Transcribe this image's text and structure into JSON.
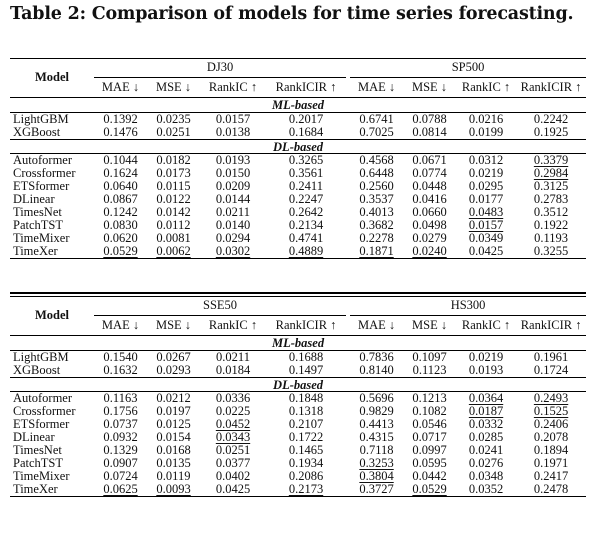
{
  "title": "Table 2: Comparison of models for time series forecasting.",
  "model_header": "Model",
  "metrics": [
    "MAE ↓",
    "MSE ↓",
    "RankIC ↑",
    "RankICIR ↑"
  ],
  "sections": [
    "ML-based",
    "DL-based"
  ],
  "tables": [
    {
      "groups": [
        "DJ30",
        "SP500"
      ],
      "ml_rows": [
        {
          "model": "LightGBM",
          "v": [
            "0.1392",
            "0.0235",
            "0.0157",
            "0.2017",
            "0.6741",
            "0.0788",
            "0.0216",
            "0.2242"
          ],
          "u": []
        },
        {
          "model": "XGBoost",
          "v": [
            "0.1476",
            "0.0251",
            "0.0138",
            "0.1684",
            "0.7025",
            "0.0814",
            "0.0199",
            "0.1925"
          ],
          "u": []
        }
      ],
      "dl_rows": [
        {
          "model": "Autoformer",
          "v": [
            "0.1044",
            "0.0182",
            "0.0193",
            "0.3265",
            "0.4568",
            "0.0671",
            "0.0312",
            "0.3379"
          ],
          "u": [
            7
          ]
        },
        {
          "model": "Crossformer",
          "v": [
            "0.1624",
            "0.0173",
            "0.0150",
            "0.3561",
            "0.6448",
            "0.0774",
            "0.0219",
            "0.2984"
          ],
          "u": [
            7
          ]
        },
        {
          "model": "ETSformer",
          "v": [
            "0.0640",
            "0.0115",
            "0.0209",
            "0.2411",
            "0.2560",
            "0.0448",
            "0.0295",
            "0.3125"
          ],
          "u": []
        },
        {
          "model": "DLinear",
          "v": [
            "0.0867",
            "0.0122",
            "0.0144",
            "0.2247",
            "0.3537",
            "0.0416",
            "0.0177",
            "0.2783"
          ],
          "u": []
        },
        {
          "model": "TimesNet",
          "v": [
            "0.1242",
            "0.0142",
            "0.0211",
            "0.2642",
            "0.4013",
            "0.0660",
            "0.0483",
            "0.3512"
          ],
          "u": [
            6
          ]
        },
        {
          "model": "PatchTST",
          "v": [
            "0.0830",
            "0.0112",
            "0.0140",
            "0.2134",
            "0.3682",
            "0.0498",
            "0.0157",
            "0.1922"
          ],
          "u": [
            6
          ]
        },
        {
          "model": "TimeMixer",
          "v": [
            "0.0620",
            "0.0081",
            "0.0294",
            "0.4741",
            "0.2278",
            "0.0279",
            "0.0349",
            "0.1193"
          ],
          "u": []
        },
        {
          "model": "TimeXer",
          "v": [
            "0.0529",
            "0.0062",
            "0.0302",
            "0.4889",
            "0.1871",
            "0.0240",
            "0.0425",
            "0.3255"
          ],
          "u": [
            0,
            1,
            2,
            3,
            4,
            5
          ]
        }
      ]
    },
    {
      "groups": [
        "SSE50",
        "HS300"
      ],
      "ml_rows": [
        {
          "model": "LightGBM",
          "v": [
            "0.1540",
            "0.0267",
            "0.0211",
            "0.1688",
            "0.7836",
            "0.1097",
            "0.0219",
            "0.1961"
          ],
          "u": []
        },
        {
          "model": "XGBoost",
          "v": [
            "0.1632",
            "0.0293",
            "0.0184",
            "0.1497",
            "0.8140",
            "0.1123",
            "0.0193",
            "0.1724"
          ],
          "u": []
        }
      ],
      "dl_rows": [
        {
          "model": "Autoformer",
          "v": [
            "0.1163",
            "0.0212",
            "0.0336",
            "0.1848",
            "0.5696",
            "0.1213",
            "0.0364",
            "0.2493"
          ],
          "u": [
            6,
            7
          ]
        },
        {
          "model": "Crossformer",
          "v": [
            "0.1756",
            "0.0197",
            "0.0225",
            "0.1318",
            "0.9829",
            "0.1082",
            "0.0187",
            "0.1525"
          ],
          "u": [
            6,
            7
          ]
        },
        {
          "model": "ETSformer",
          "v": [
            "0.0737",
            "0.0125",
            "0.0452",
            "0.2107",
            "0.4413",
            "0.0546",
            "0.0332",
            "0.2406"
          ],
          "u": [
            2
          ]
        },
        {
          "model": "DLinear",
          "v": [
            "0.0932",
            "0.0154",
            "0.0343",
            "0.1722",
            "0.4315",
            "0.0717",
            "0.0285",
            "0.2078"
          ],
          "u": [
            2
          ]
        },
        {
          "model": "TimesNet",
          "v": [
            "0.1329",
            "0.0168",
            "0.0251",
            "0.1465",
            "0.7118",
            "0.0997",
            "0.0241",
            "0.1894"
          ],
          "u": []
        },
        {
          "model": "PatchTST",
          "v": [
            "0.0907",
            "0.0135",
            "0.0377",
            "0.1934",
            "0.3253",
            "0.0595",
            "0.0276",
            "0.1971"
          ],
          "u": [
            4
          ]
        },
        {
          "model": "TimeMixer",
          "v": [
            "0.0724",
            "0.0119",
            "0.0402",
            "0.2086",
            "0.3804",
            "0.0442",
            "0.0348",
            "0.2417"
          ],
          "u": [
            4
          ]
        },
        {
          "model": "TimeXer",
          "v": [
            "0.0625",
            "0.0093",
            "0.0425",
            "0.2173",
            "0.3727",
            "0.0529",
            "0.0352",
            "0.2478"
          ],
          "u": [
            0,
            1,
            3,
            5
          ]
        }
      ]
    }
  ]
}
